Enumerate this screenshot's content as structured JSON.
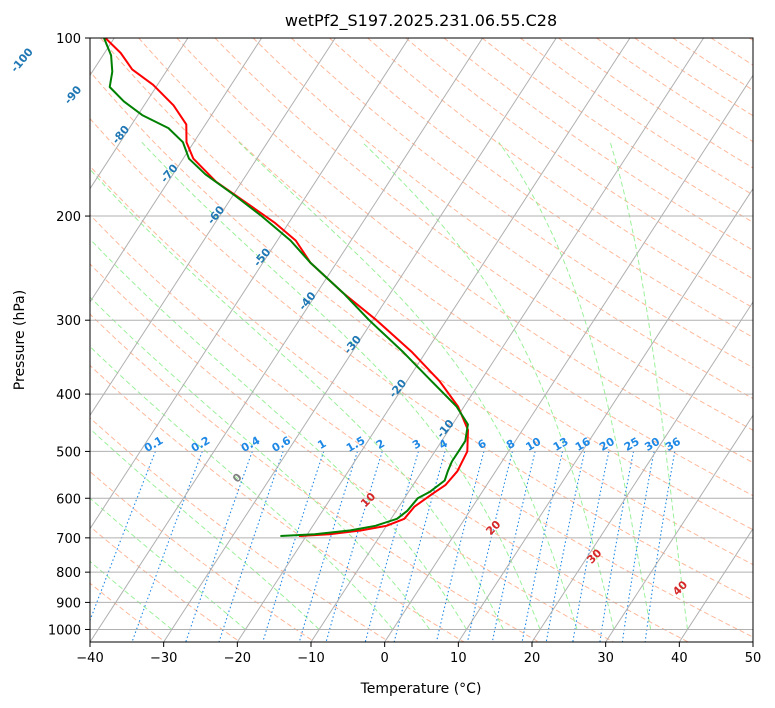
{
  "chart_data": {
    "type": "line",
    "subtype": "skew-t log-p diagram",
    "title": "wetPf2_S197.2025.231.06.55.C28",
    "xlabel": "Temperature (°C)",
    "ylabel": "Pressure (hPa)",
    "xlim": [
      -40,
      50
    ],
    "ylim": [
      1050,
      100
    ],
    "y_scale": "log",
    "grid": true,
    "x_ticks": [
      -40,
      -30,
      -20,
      -10,
      0,
      10,
      20,
      30,
      40,
      50
    ],
    "y_ticks": [
      100,
      200,
      300,
      400,
      500,
      600,
      700,
      800,
      900,
      1000
    ],
    "isotherm_labels": [
      "-100",
      "-90",
      "-80",
      "-70",
      "-60",
      "-50",
      "-40",
      "-30",
      "-20",
      "-10"
    ],
    "mixing_ratio_labels": [
      "0.1",
      "0.2",
      "0.4",
      "0.6",
      "1",
      "1.5",
      "2",
      "3",
      "4",
      "6",
      "8",
      "10",
      "13",
      "16",
      "20",
      "25",
      "30",
      "36"
    ],
    "moist_adiabat_labels": [
      "0",
      "10",
      "20",
      "30",
      "40"
    ],
    "colors": {
      "temperature": "#ff0000",
      "dewpoint": "#008000",
      "isotherm_label": "#1f77b4",
      "mixing_ratio": "#1e88e5",
      "moist_adiabat_label": "#d62728",
      "dry_adiabat": "#ffa07a",
      "moist_adiabat": "#90ee90",
      "grid": "#b0b0b0"
    },
    "series": [
      {
        "name": "Temperature",
        "color": "#ff0000",
        "points": [
          {
            "p": 695,
            "t": -21.0
          },
          {
            "p": 690,
            "t": -17.0
          },
          {
            "p": 680,
            "t": -13.0
          },
          {
            "p": 668,
            "t": -10.0
          },
          {
            "p": 650,
            "t": -8.2
          },
          {
            "p": 620,
            "t": -7.9
          },
          {
            "p": 590,
            "t": -6.6
          },
          {
            "p": 570,
            "t": -5.6
          },
          {
            "p": 540,
            "t": -5.2
          },
          {
            "p": 500,
            "t": -5.6
          },
          {
            "p": 460,
            "t": -7.4
          },
          {
            "p": 420,
            "t": -10.8
          },
          {
            "p": 380,
            "t": -15.6
          },
          {
            "p": 340,
            "t": -21.8
          },
          {
            "p": 300,
            "t": -29.5
          },
          {
            "p": 270,
            "t": -36.4
          },
          {
            "p": 240,
            "t": -43.5
          },
          {
            "p": 220,
            "t": -47.5
          },
          {
            "p": 205,
            "t": -52.0
          },
          {
            "p": 190,
            "t": -57.5
          },
          {
            "p": 175,
            "t": -63.5
          },
          {
            "p": 160,
            "t": -68.6
          },
          {
            "p": 150,
            "t": -71.0
          },
          {
            "p": 140,
            "t": -72.6
          },
          {
            "p": 130,
            "t": -76.0
          },
          {
            "p": 120,
            "t": -80.6
          },
          {
            "p": 113,
            "t": -84.8
          },
          {
            "p": 106,
            "t": -87.8
          },
          {
            "p": 100,
            "t": -91.2
          }
        ]
      },
      {
        "name": "Dewpoint",
        "color": "#008000",
        "points": [
          {
            "p": 695,
            "t": -23.5
          },
          {
            "p": 690,
            "t": -19.0
          },
          {
            "p": 680,
            "t": -14.5
          },
          {
            "p": 668,
            "t": -11.5
          },
          {
            "p": 650,
            "t": -9.2
          },
          {
            "p": 630,
            "t": -8.5
          },
          {
            "p": 600,
            "t": -8.2
          },
          {
            "p": 585,
            "t": -7.1
          },
          {
            "p": 560,
            "t": -6.1
          },
          {
            "p": 540,
            "t": -6.5
          },
          {
            "p": 520,
            "t": -6.8
          },
          {
            "p": 500,
            "t": -6.8
          },
          {
            "p": 480,
            "t": -6.8
          },
          {
            "p": 450,
            "t": -7.9
          },
          {
            "p": 420,
            "t": -11.0
          },
          {
            "p": 380,
            "t": -16.7
          },
          {
            "p": 340,
            "t": -23.0
          },
          {
            "p": 300,
            "t": -30.5
          },
          {
            "p": 270,
            "t": -36.4
          },
          {
            "p": 240,
            "t": -43.5
          },
          {
            "p": 220,
            "t": -48.2
          },
          {
            "p": 200,
            "t": -54.3
          },
          {
            "p": 185,
            "t": -59.6
          },
          {
            "p": 170,
            "t": -65.6
          },
          {
            "p": 160,
            "t": -69.2
          },
          {
            "p": 150,
            "t": -71.5
          },
          {
            "p": 142,
            "t": -74.7
          },
          {
            "p": 135,
            "t": -79.4
          },
          {
            "p": 128,
            "t": -83.1
          },
          {
            "p": 121,
            "t": -86.3
          },
          {
            "p": 114,
            "t": -87.3
          },
          {
            "p": 107,
            "t": -88.9
          },
          {
            "p": 100,
            "t": -91.4
          }
        ]
      }
    ]
  }
}
